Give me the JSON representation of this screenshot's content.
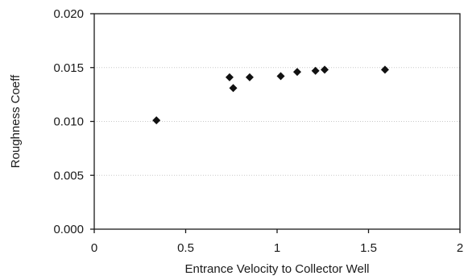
{
  "chart_data": {
    "type": "scatter",
    "title": "",
    "xlabel": "Entrance Velocity to Collector Well",
    "ylabel": "Roughness Coeff",
    "xlim": [
      0,
      2
    ],
    "ylim": [
      0,
      0.02
    ],
    "x_ticks": [
      0,
      0.5,
      1,
      1.5,
      2
    ],
    "x_tick_labels": [
      "0",
      "0.5",
      "1",
      "1.5",
      "2"
    ],
    "y_ticks": [
      0,
      0.005,
      0.01,
      0.015,
      0.02
    ],
    "y_tick_labels": [
      "0.000",
      "0.005",
      "0.010",
      "0.015",
      "0.020"
    ],
    "grid": "horizontal dotted",
    "legend": "none",
    "marker": "diamond",
    "marker_color": "#111111",
    "series": [
      {
        "x": [
          0.34,
          0.74,
          0.76,
          0.85,
          1.02,
          1.11,
          1.21,
          1.26,
          1.59
        ],
        "y": [
          0.0101,
          0.0141,
          0.0131,
          0.0141,
          0.0142,
          0.0146,
          0.0147,
          0.0148,
          0.0148
        ]
      }
    ]
  }
}
